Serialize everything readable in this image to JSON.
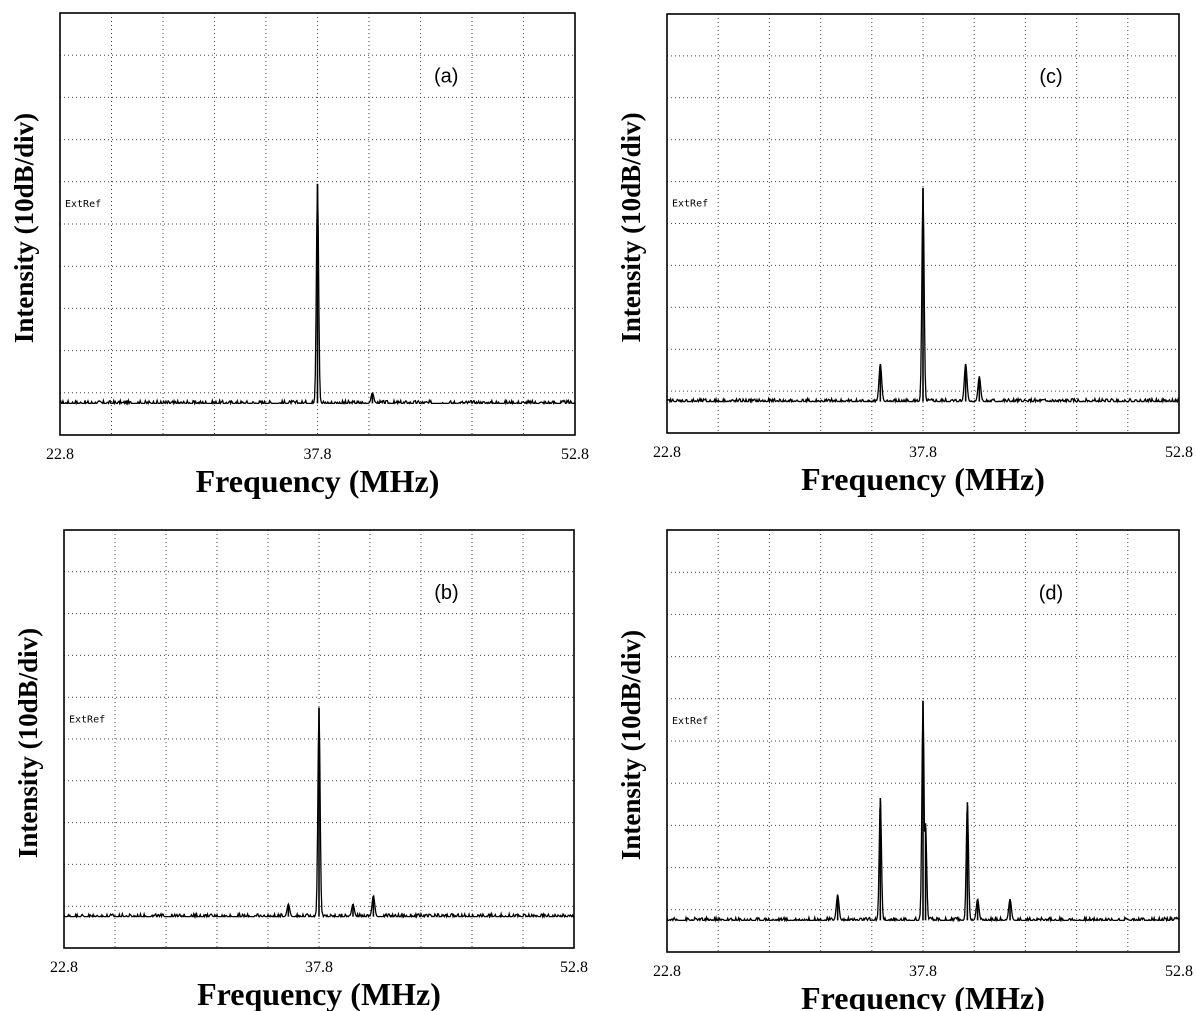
{
  "chart_data": [
    {
      "type": "line",
      "panel_label": "(a)",
      "annotation": "ExtRef",
      "xlabel": "Frequency (MHz)",
      "ylabel": "Intensity (10dB/div)",
      "x_ticks": [
        "22.8",
        "37.8",
        "52.8"
      ],
      "xlim": [
        22.8,
        52.8
      ],
      "y_divisions": 10,
      "grid": true,
      "noise_floor_div": 0.75,
      "peaks": [
        {
          "freq_mhz": 37.8,
          "height_div": 5.2
        },
        {
          "freq_mhz": 41.0,
          "height_div": 0.25
        }
      ]
    },
    {
      "type": "line",
      "panel_label": "(b)",
      "annotation": "ExtRef",
      "xlabel": "Frequency (MHz)",
      "ylabel": "Intensity (10dB/div)",
      "x_ticks": [
        "22.8",
        "37.8",
        "52.8"
      ],
      "xlim": [
        22.8,
        52.8
      ],
      "y_divisions": 10,
      "grid": true,
      "noise_floor_div": 0.75,
      "peaks": [
        {
          "freq_mhz": 36.0,
          "height_div": 0.3
        },
        {
          "freq_mhz": 37.8,
          "height_div": 5.0
        },
        {
          "freq_mhz": 39.8,
          "height_div": 0.3
        },
        {
          "freq_mhz": 41.0,
          "height_div": 0.5
        }
      ]
    },
    {
      "type": "line",
      "panel_label": "(c)",
      "annotation": "ExtRef",
      "xlabel": "Frequency (MHz)",
      "ylabel": "Intensity (10dB/div)",
      "x_ticks": [
        "22.8",
        "37.8",
        "52.8"
      ],
      "xlim": [
        22.8,
        52.8
      ],
      "y_divisions": 10,
      "grid": true,
      "noise_floor_div": 0.75,
      "peaks": [
        {
          "freq_mhz": 35.3,
          "height_div": 0.9
        },
        {
          "freq_mhz": 37.8,
          "height_div": 5.1
        },
        {
          "freq_mhz": 40.3,
          "height_div": 0.9
        },
        {
          "freq_mhz": 41.1,
          "height_div": 0.6
        }
      ]
    },
    {
      "type": "line",
      "panel_label": "(d)",
      "annotation": "ExtRef",
      "xlabel": "Frequency (MHz)",
      "ylabel": "Intensity (10dB/div)",
      "x_ticks": [
        "22.8",
        "37.8",
        "52.8"
      ],
      "xlim": [
        22.8,
        52.8
      ],
      "y_divisions": 10,
      "grid": true,
      "noise_floor_div": 0.75,
      "peaks": [
        {
          "freq_mhz": 32.8,
          "height_div": 0.6
        },
        {
          "freq_mhz": 35.3,
          "height_div": 2.9
        },
        {
          "freq_mhz": 37.8,
          "height_div": 5.2
        },
        {
          "freq_mhz": 37.95,
          "height_div": 2.3
        },
        {
          "freq_mhz": 40.4,
          "height_div": 2.8
        },
        {
          "freq_mhz": 41.0,
          "height_div": 0.5
        },
        {
          "freq_mhz": 42.9,
          "height_div": 0.5
        }
      ]
    }
  ]
}
